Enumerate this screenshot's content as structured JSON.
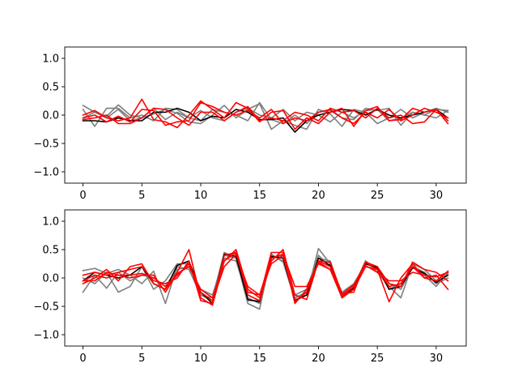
{
  "chart_data": [
    {
      "type": "line",
      "x": [
        0,
        1,
        2,
        3,
        4,
        5,
        6,
        7,
        8,
        9,
        10,
        11,
        12,
        13,
        14,
        15,
        16,
        17,
        18,
        19,
        20,
        21,
        22,
        23,
        24,
        25,
        26,
        27,
        28,
        29,
        30,
        31
      ],
      "xlim": [
        -1.55,
        32.55
      ],
      "ylim": [
        -1.2,
        1.2
      ],
      "xticks": [
        0,
        5,
        10,
        15,
        20,
        25,
        30
      ],
      "yticks": [
        -1.0,
        -0.5,
        0.0,
        0.5,
        1.0
      ],
      "xtick_labels": [
        "0",
        "5",
        "10",
        "15",
        "20",
        "25",
        "30"
      ],
      "ytick_labels": [
        "−1.0",
        "−0.5",
        "0.0",
        "0.5",
        "1.0"
      ],
      "grid": false,
      "colors": {
        "gray": "#7f7f7f",
        "dark": "#000000",
        "red": "#ff0000"
      },
      "series": [
        {
          "color": "gray",
          "values": [
            0.17,
            0.05,
            -0.02,
            0.18,
            0.0,
            -0.05,
            0.02,
            0.1,
            0.03,
            -0.12,
            -0.15,
            0.0,
            0.17,
            -0.05,
            0.1,
            0.2,
            -0.25,
            -0.1,
            -0.18,
            -0.25,
            0.1,
            0.02,
            -0.2,
            0.1,
            0.05,
            -0.15,
            -0.05,
            0.1,
            -0.05,
            0.05,
            0.12,
            0.05
          ]
        },
        {
          "color": "gray",
          "values": [
            0.1,
            -0.2,
            0.12,
            0.12,
            -0.05,
            0.0,
            -0.1,
            0.12,
            0.1,
            -0.05,
            -0.1,
            0.1,
            0.05,
            0.0,
            -0.1,
            0.22,
            -0.08,
            -0.15,
            0.0,
            -0.15,
            0.05,
            0.08,
            -0.05,
            -0.08,
            0.12,
            0.08,
            0.12,
            -0.18,
            0.05,
            0.0,
            0.1,
            0.08
          ]
        },
        {
          "color": "gray",
          "values": [
            -0.05,
            0.05,
            -0.05,
            0.1,
            -0.1,
            -0.05,
            0.12,
            -0.08,
            0.05,
            -0.05,
            0.08,
            -0.05,
            -0.1,
            0.05,
            0.12,
            0.0,
            -0.05,
            0.1,
            -0.1,
            0.05,
            0.0,
            -0.12,
            0.05,
            -0.05,
            0.08,
            0.1,
            -0.1,
            -0.05,
            0.05,
            0.0,
            -0.05,
            0.08
          ]
        },
        {
          "color": "dark",
          "values": [
            -0.1,
            -0.1,
            -0.12,
            -0.05,
            -0.1,
            -0.1,
            0.05,
            0.05,
            0.12,
            0.05,
            -0.1,
            -0.02,
            -0.05,
            0.1,
            0.05,
            -0.08,
            -0.08,
            -0.05,
            -0.3,
            -0.1,
            0.0,
            0.05,
            0.1,
            0.08,
            0.0,
            0.1,
            0.0,
            -0.05,
            0.0,
            0.05,
            0.1,
            -0.05
          ]
        },
        {
          "color": "red",
          "values": [
            0.0,
            0.08,
            -0.05,
            -0.1,
            -0.05,
            0.28,
            -0.08,
            -0.12,
            -0.22,
            0.0,
            0.25,
            0.1,
            -0.05,
            0.22,
            0.12,
            -0.12,
            0.05,
            0.08,
            -0.25,
            -0.05,
            -0.15,
            0.05,
            0.12,
            -0.2,
            0.08,
            0.15,
            -0.1,
            -0.08,
            0.12,
            0.05,
            0.1,
            -0.1
          ]
        },
        {
          "color": "red",
          "values": [
            -0.05,
            0.0,
            -0.12,
            -0.02,
            -0.12,
            0.1,
            0.08,
            -0.18,
            -0.12,
            -0.1,
            0.22,
            0.15,
            0.05,
            0.0,
            0.08,
            -0.05,
            0.1,
            -0.15,
            -0.05,
            -0.1,
            0.05,
            0.1,
            -0.05,
            -0.15,
            0.05,
            -0.05,
            0.1,
            -0.1,
            0.0,
            0.12,
            0.05,
            -0.05
          ]
        },
        {
          "color": "red",
          "values": [
            -0.08,
            -0.05,
            0.0,
            -0.15,
            -0.15,
            -0.05,
            0.12,
            0.1,
            -0.05,
            -0.18,
            0.05,
            0.05,
            -0.1,
            0.05,
            0.15,
            -0.1,
            -0.05,
            -0.1,
            0.05,
            0.0,
            -0.1,
            0.12,
            0.05,
            0.08,
            -0.05,
            0.12,
            -0.05,
            0.0,
            -0.15,
            -0.12,
            0.1,
            -0.15
          ]
        }
      ]
    },
    {
      "type": "line",
      "x": [
        0,
        1,
        2,
        3,
        4,
        5,
        6,
        7,
        8,
        9,
        10,
        11,
        12,
        13,
        14,
        15,
        16,
        17,
        18,
        19,
        20,
        21,
        22,
        23,
        24,
        25,
        26,
        27,
        28,
        29,
        30,
        31
      ],
      "xlim": [
        -1.55,
        32.55
      ],
      "ylim": [
        -1.2,
        1.2
      ],
      "xticks": [
        0,
        5,
        10,
        15,
        20,
        25,
        30
      ],
      "yticks": [
        -1.0,
        -0.5,
        0.0,
        0.5,
        1.0
      ],
      "xtick_labels": [
        "0",
        "5",
        "10",
        "15",
        "20",
        "25",
        "30"
      ],
      "ytick_labels": [
        "−1.0",
        "−0.5",
        "0.0",
        "0.5",
        "1.0"
      ],
      "grid": false,
      "colors": {
        "gray": "#7f7f7f",
        "dark": "#000000",
        "red": "#ff0000"
      },
      "series": [
        {
          "color": "gray",
          "values": [
            0.13,
            0.17,
            0.08,
            0.15,
            0.05,
            -0.1,
            0.12,
            -0.45,
            0.2,
            0.15,
            -0.3,
            -0.35,
            0.45,
            0.35,
            -0.45,
            -0.55,
            0.42,
            0.28,
            -0.38,
            -0.3,
            0.52,
            0.25,
            -0.3,
            -0.15,
            0.3,
            0.1,
            -0.15,
            -0.35,
            0.25,
            0.15,
            -0.05,
            0.08
          ]
        },
        {
          "color": "gray",
          "values": [
            -0.25,
            0.05,
            -0.18,
            0.1,
            -0.05,
            0.05,
            0.0,
            -0.15,
            0.15,
            0.2,
            -0.2,
            -0.3,
            0.35,
            0.3,
            -0.35,
            -0.45,
            0.35,
            0.4,
            -0.3,
            -0.2,
            0.4,
            0.2,
            -0.25,
            -0.1,
            0.25,
            0.2,
            -0.2,
            -0.1,
            0.2,
            0.1,
            -0.1,
            0.0
          ]
        },
        {
          "color": "gray",
          "values": [
            0.0,
            -0.1,
            0.1,
            -0.25,
            -0.15,
            0.2,
            -0.2,
            -0.05,
            0.25,
            0.25,
            -0.3,
            -0.4,
            0.4,
            0.35,
            -0.4,
            -0.4,
            0.4,
            0.3,
            -0.35,
            -0.25,
            0.35,
            0.3,
            -0.3,
            -0.2,
            0.3,
            0.15,
            -0.1,
            -0.2,
            0.2,
            0.05,
            -0.15,
            0.1
          ]
        },
        {
          "color": "dark",
          "values": [
            -0.05,
            0.1,
            0.05,
            0.0,
            0.05,
            0.2,
            -0.1,
            -0.2,
            0.22,
            0.3,
            -0.25,
            -0.45,
            0.42,
            0.38,
            -0.38,
            -0.42,
            0.38,
            0.35,
            -0.4,
            -0.3,
            0.35,
            0.22,
            -0.35,
            -0.18,
            0.25,
            0.18,
            -0.2,
            -0.15,
            0.18,
            0.08,
            -0.08,
            0.05
          ]
        },
        {
          "color": "red",
          "values": [
            -0.1,
            0.0,
            0.15,
            -0.05,
            0.2,
            0.25,
            -0.1,
            -0.2,
            0.1,
            0.5,
            -0.35,
            -0.48,
            0.3,
            0.5,
            -0.2,
            -0.35,
            0.45,
            0.45,
            -0.45,
            -0.2,
            0.28,
            0.15,
            -0.35,
            -0.2,
            0.2,
            0.15,
            -0.42,
            0.0,
            0.25,
            0.0,
            0.05,
            -0.2
          ]
        },
        {
          "color": "red",
          "values": [
            0.05,
            0.1,
            0.05,
            0.1,
            0.15,
            0.2,
            -0.05,
            -0.1,
            0.0,
            0.3,
            -0.4,
            -0.45,
            0.4,
            0.45,
            -0.3,
            -0.4,
            0.3,
            0.5,
            -0.3,
            -0.38,
            0.3,
            0.28,
            -0.28,
            -0.25,
            0.28,
            0.2,
            -0.1,
            -0.15,
            0.28,
            0.15,
            0.1,
            -0.05
          ]
        },
        {
          "color": "red",
          "values": [
            -0.05,
            -0.05,
            0.1,
            0.05,
            0.05,
            0.08,
            0.0,
            -0.15,
            0.05,
            0.25,
            -0.25,
            -0.4,
            0.2,
            0.42,
            -0.15,
            -0.3,
            0.35,
            0.42,
            -0.15,
            -0.15,
            0.25,
            0.15,
            -0.28,
            -0.12,
            0.22,
            0.1,
            -0.05,
            -0.05,
            0.1,
            0.05,
            0.02,
            0.1
          ]
        },
        {
          "color": "red",
          "values": [
            -0.05,
            0.05,
            0.0,
            0.05,
            0.0,
            0.05,
            0.05,
            -0.25,
            0.08,
            0.2,
            -0.2,
            -0.35,
            0.3,
            0.45,
            -0.25,
            -0.3,
            0.25,
            0.4,
            -0.42,
            -0.25,
            0.3,
            0.2,
            -0.32,
            -0.15,
            0.28,
            0.15,
            -0.15,
            -0.1,
            0.2,
            0.0,
            -0.05,
            0.12
          ]
        }
      ]
    }
  ]
}
